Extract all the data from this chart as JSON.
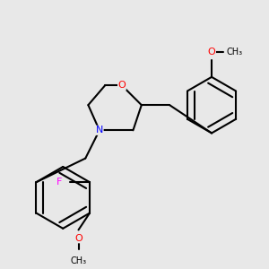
{
  "background_color": "#e8e8e8",
  "bond_color": "#000000",
  "atom_colors": {
    "O": "#ff0000",
    "N": "#0000ff",
    "F": "#ff00ff",
    "C": "#000000"
  },
  "figsize": [
    3.0,
    3.0
  ],
  "dpi": 100
}
